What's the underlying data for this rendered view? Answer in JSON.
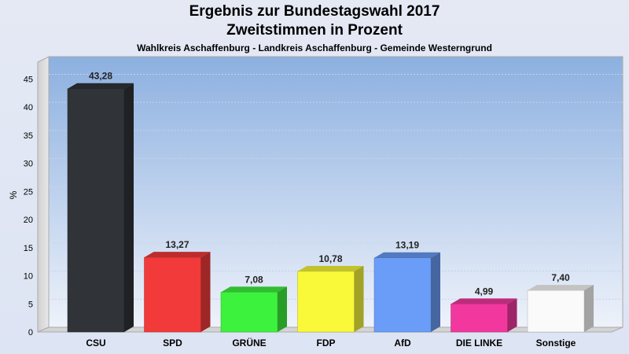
{
  "title": "Ergebnis zur Bundestagswahl 2017",
  "subtitle": "Zweitstimmen in Prozent",
  "caption": "Wahlkreis Aschaffenburg - Landkreis Aschaffenburg - Gemeinde Westerngrund",
  "chart_data": {
    "type": "bar",
    "title": "Ergebnis zur Bundestagswahl 2017",
    "subtitle": "Zweitstimmen in Prozent",
    "xlabel": "",
    "ylabel": "%",
    "ylim": [
      0,
      48
    ],
    "yticks": [
      0,
      5,
      10,
      15,
      20,
      25,
      30,
      35,
      40,
      45
    ],
    "grid": true,
    "categories": [
      "CSU",
      "SPD",
      "GRÜNE",
      "FDP",
      "AfD",
      "DIE LINKE",
      "Sonstige"
    ],
    "values": [
      43.28,
      13.27,
      7.08,
      10.78,
      13.19,
      4.99,
      7.4
    ],
    "value_labels": [
      "43,28",
      "13,27",
      "7,08",
      "10,78",
      "13,19",
      "4,99",
      "7,40"
    ],
    "colors": [
      "#303338",
      "#f23a3a",
      "#3df23d",
      "#f9f93a",
      "#6a9df8",
      "#f2389f",
      "#fafafa"
    ]
  }
}
